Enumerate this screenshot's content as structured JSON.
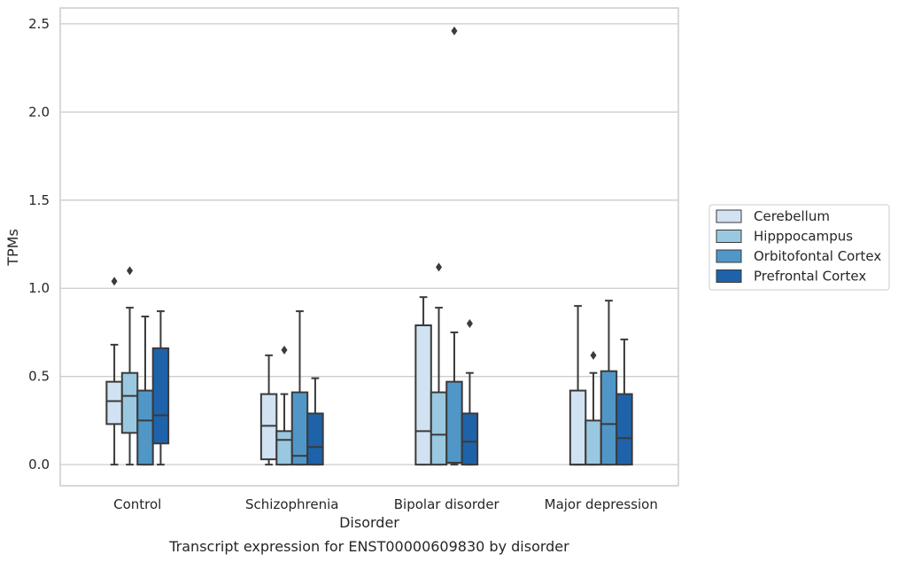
{
  "caption": "Transcript expression for ENST00000609830 by disorder",
  "chart_data": {
    "type": "box",
    "xlabel": "Disorder",
    "ylabel": "TPMs",
    "ylim": [
      -0.12,
      2.59
    ],
    "yticks": [
      "0.0",
      "0.5",
      "1.0",
      "1.5",
      "2.0",
      "2.5"
    ],
    "ytick_values": [
      0.0,
      0.5,
      1.0,
      1.5,
      2.0,
      2.5
    ],
    "categories": [
      "Control",
      "Schizophrenia",
      "Bipolar disorder",
      "Major depression"
    ],
    "grid": true,
    "legend_position": "right",
    "series": [
      {
        "name": "Cerebellum",
        "color": "#d1e2f2",
        "boxes": [
          {
            "whislo": 0.0,
            "q1": 0.23,
            "med": 0.36,
            "q3": 0.47,
            "whishi": 0.68,
            "fliers": [
              1.04
            ]
          },
          {
            "whislo": 0.0,
            "q1": 0.03,
            "med": 0.22,
            "q3": 0.4,
            "whishi": 0.62,
            "fliers": []
          },
          {
            "whislo": 0.0,
            "q1": 0.0,
            "med": 0.19,
            "q3": 0.79,
            "whishi": 0.95,
            "fliers": []
          },
          {
            "whislo": 0.0,
            "q1": 0.0,
            "med": 0.0,
            "q3": 0.42,
            "whishi": 0.9,
            "fliers": []
          }
        ]
      },
      {
        "name": "Hipppocampus",
        "color": "#9ac8e0",
        "boxes": [
          {
            "whislo": 0.0,
            "q1": 0.18,
            "med": 0.39,
            "q3": 0.52,
            "whishi": 0.89,
            "fliers": [
              1.1
            ]
          },
          {
            "whislo": 0.0,
            "q1": 0.0,
            "med": 0.14,
            "q3": 0.19,
            "whishi": 0.4,
            "fliers": [
              0.65
            ]
          },
          {
            "whislo": 0.0,
            "q1": 0.0,
            "med": 0.17,
            "q3": 0.41,
            "whishi": 0.89,
            "fliers": [
              1.12
            ]
          },
          {
            "whislo": 0.0,
            "q1": 0.0,
            "med": 0.0,
            "q3": 0.25,
            "whishi": 0.52,
            "fliers": [
              0.62
            ]
          }
        ]
      },
      {
        "name": "Orbitofontal Cortex",
        "color": "#5097c8",
        "boxes": [
          {
            "whislo": 0.0,
            "q1": 0.0,
            "med": 0.25,
            "q3": 0.42,
            "whishi": 0.84,
            "fliers": []
          },
          {
            "whislo": 0.0,
            "q1": 0.0,
            "med": 0.05,
            "q3": 0.41,
            "whishi": 0.87,
            "fliers": []
          },
          {
            "whislo": 0.0,
            "q1": 0.01,
            "med": 0.01,
            "q3": 0.47,
            "whishi": 0.75,
            "fliers": [
              2.46
            ]
          },
          {
            "whislo": 0.0,
            "q1": 0.0,
            "med": 0.23,
            "q3": 0.53,
            "whishi": 0.93,
            "fliers": []
          }
        ]
      },
      {
        "name": "Prefrontal Cortex",
        "color": "#1e63a9",
        "boxes": [
          {
            "whislo": 0.0,
            "q1": 0.12,
            "med": 0.28,
            "q3": 0.66,
            "whishi": 0.87,
            "fliers": []
          },
          {
            "whislo": 0.0,
            "q1": 0.0,
            "med": 0.1,
            "q3": 0.29,
            "whishi": 0.49,
            "fliers": []
          },
          {
            "whislo": 0.0,
            "q1": 0.0,
            "med": 0.13,
            "q3": 0.29,
            "whishi": 0.52,
            "fliers": [
              0.8
            ]
          },
          {
            "whislo": 0.0,
            "q1": 0.0,
            "med": 0.15,
            "q3": 0.4,
            "whishi": 0.71,
            "fliers": []
          }
        ]
      }
    ]
  }
}
